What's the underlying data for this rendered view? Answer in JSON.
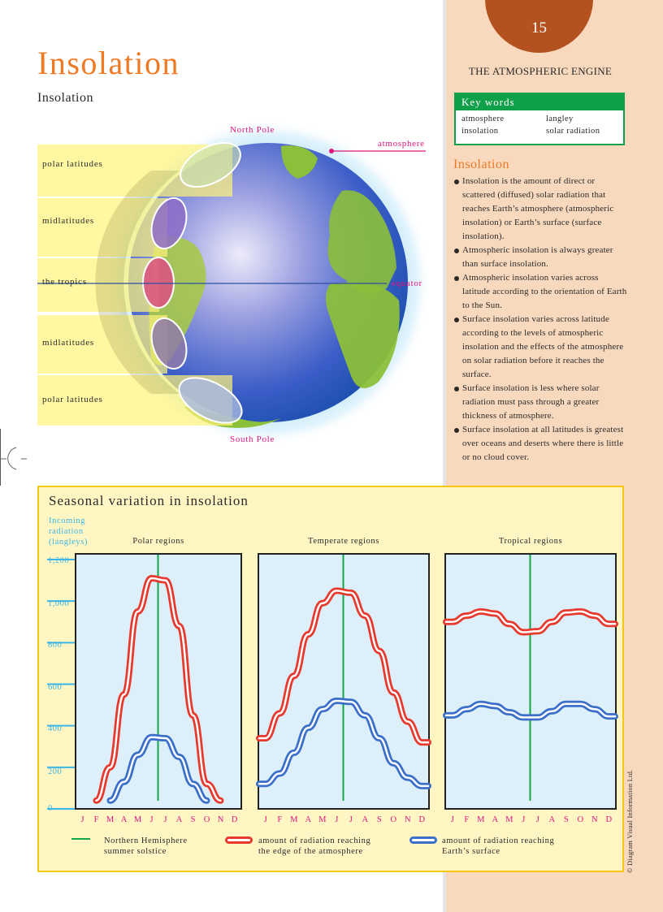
{
  "page": {
    "number": "15",
    "section": "THE ATMOSPHERIC ENGINE",
    "title": "Insolation",
    "subtitle": "Insolation",
    "copyright": "© Diagram Visual Information Ltd."
  },
  "key_words": {
    "heading": "Key words",
    "items": [
      "atmosphere",
      "langley",
      "insolation",
      "solar radiation"
    ]
  },
  "info": {
    "title": "Insolation",
    "bullets": [
      "Insolation is the amount of direct or scattered (diffused) solar radiation that reaches Earth’s atmosphere (atmospheric insolation) or Earth’s surface (surface insolation).",
      "Atmospheric insolation is always greater than surface insolation.",
      "Atmospheric insolation varies across latitude according to the orientation of Earth to the Sun.",
      "Surface insolation varies across latitude according to the levels of atmospheric insolation and the effects of the atmosphere on solar radiation before it reaches the surface.",
      "Surface insolation is less where solar radiation must pass through a greater thickness of atmosphere.",
      "Surface insolation at all latitudes is greatest over oceans and deserts where there is little or no cloud cover."
    ]
  },
  "globe": {
    "north_pole": "North Pole",
    "south_pole": "South Pole",
    "atmosphere": "atmosphere",
    "equator": "equator",
    "bands": [
      "polar latitudes",
      "midlatitudes",
      "the tropics",
      "midlatitudes",
      "polar latitudes"
    ]
  },
  "colors": {
    "accent_orange": "#F07A24",
    "page_circle": "#B3521F",
    "side_panel": "#F9D9BE",
    "key_green": "#11A04A",
    "label_pink": "#E0157F",
    "axis_blue": "#3AB5E5",
    "atmosphere_red": "#E8392F",
    "surface_blue": "#3B6FC8",
    "solstice_green": "#12A54A",
    "chart_bg": "#FFF6C4",
    "plot_bg": "#DDF0FA"
  },
  "chart_data": {
    "type": "line",
    "title": "Seasonal variation in insolation",
    "ylabel": "Incoming radiation (langleys)",
    "ylabel_lines": [
      "Incoming",
      "radiation",
      "(langleys)"
    ],
    "ylim": [
      0,
      1200
    ],
    "yticks": [
      "0",
      "200",
      "400",
      "600",
      "800",
      "1,000",
      "1,200"
    ],
    "ytick_values": [
      0,
      200,
      400,
      600,
      800,
      1000,
      1200
    ],
    "x": [
      "J",
      "F",
      "M",
      "A",
      "M",
      "J",
      "J",
      "A",
      "S",
      "O",
      "N",
      "D"
    ],
    "solstice_marker": "June/July boundary",
    "panels": [
      {
        "title": "Polar regions",
        "series": [
          {
            "name": "amount of radiation reaching the edge of the atmosphere",
            "values": [
              null,
              40,
              200,
              550,
              950,
              1110,
              1100,
              880,
              450,
              120,
              40,
              null
            ]
          },
          {
            "name": "amount of radiation reaching Earth's surface",
            "values": [
              null,
              null,
              40,
              130,
              260,
              345,
              340,
              250,
              120,
              40,
              null,
              null
            ]
          }
        ]
      },
      {
        "title": "Temperate regions",
        "series": [
          {
            "name": "amount of radiation reaching the edge of the atmosphere",
            "values": [
              340,
              460,
              640,
              840,
              990,
              1050,
              1040,
              930,
              760,
              560,
              420,
              320
            ]
          },
          {
            "name": "amount of radiation reaching Earth's surface",
            "values": [
              120,
              170,
              270,
              390,
              480,
              520,
              515,
              450,
              340,
              220,
              150,
              110
            ]
          }
        ]
      },
      {
        "title": "Tropical regions",
        "series": [
          {
            "name": "amount of radiation reaching the edge of the atmosphere",
            "values": [
              900,
              930,
              950,
              940,
              890,
              850,
              855,
              900,
              945,
              950,
              930,
              890
            ]
          },
          {
            "name": "amount of radiation reaching Earth's surface",
            "values": [
              450,
              480,
              505,
              495,
              465,
              440,
              440,
              470,
              505,
              505,
              480,
              445
            ]
          }
        ]
      }
    ],
    "legend": [
      {
        "label_line1": "Northern Hemisphere",
        "label_line2": "summer solstice",
        "style": "green line"
      },
      {
        "label_line1": "amount of radiation reaching",
        "label_line2": "the edge of the atmosphere",
        "style": "red tube"
      },
      {
        "label_line1": "amount of radiation reaching",
        "label_line2": "Earth’s surface",
        "style": "blue tube"
      }
    ]
  }
}
